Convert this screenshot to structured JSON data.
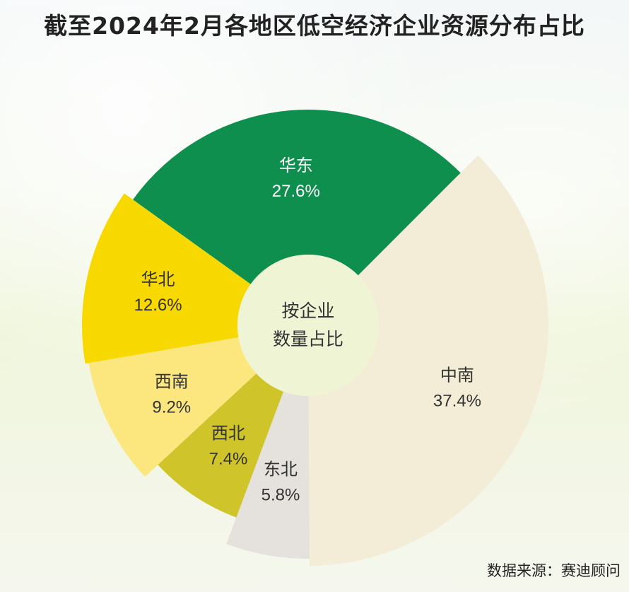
{
  "title": "截至2024年2月各地区低空经济企业资源分布占比",
  "source": "数据来源：赛迪顾问",
  "chart_data": {
    "type": "pie",
    "variant": "donut",
    "center_label_lines": [
      "按企业",
      "数量占比"
    ],
    "unit": "%",
    "slices": [
      {
        "label": "中南",
        "value": 37.4,
        "display": "37.4%",
        "color": "#f3ecd6",
        "text_color": "#333333"
      },
      {
        "label": "东北",
        "value": 5.8,
        "display": "5.8%",
        "color": "#e5e1dc",
        "text_color": "#333333"
      },
      {
        "label": "西北",
        "value": 7.4,
        "display": "7.4%",
        "color": "#cfc429",
        "text_color": "#333333"
      },
      {
        "label": "西南",
        "value": 9.2,
        "display": "9.2%",
        "color": "#fbe77e",
        "text_color": "#333333"
      },
      {
        "label": "华北",
        "value": 12.6,
        "display": "12.6%",
        "color": "#f7d800",
        "text_color": "#333333"
      },
      {
        "label": "华东",
        "value": 27.6,
        "display": "27.6%",
        "color": "#0e8f4d",
        "text_color": "#ffffff"
      }
    ]
  }
}
